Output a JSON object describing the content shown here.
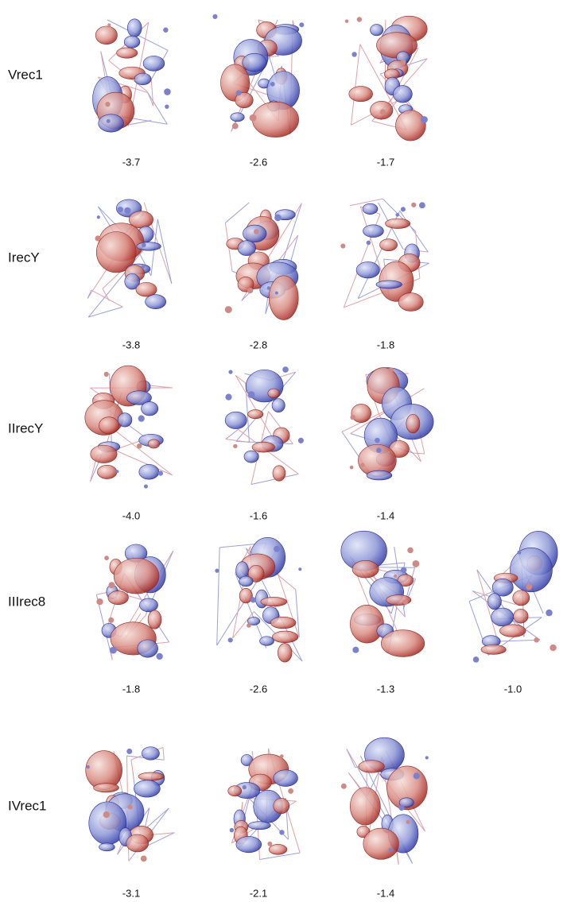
{
  "rows": [
    {
      "label": "Vrec1",
      "values": [
        "-3.7",
        "-2.6",
        "-1.7"
      ]
    },
    {
      "label": "IrecY",
      "values": [
        "-3.8",
        "-2.8",
        "-1.8"
      ]
    },
    {
      "label": "IIrecY",
      "values": [
        "-4.0",
        "-1.6",
        "-1.4"
      ]
    },
    {
      "label": "IIIrec8",
      "values": [
        "-1.8",
        "-2.6",
        "-1.3",
        "-1.0"
      ]
    },
    {
      "label": "IVrec1",
      "values": [
        "-3.1",
        "-2.1",
        "-1.4"
      ]
    }
  ]
}
